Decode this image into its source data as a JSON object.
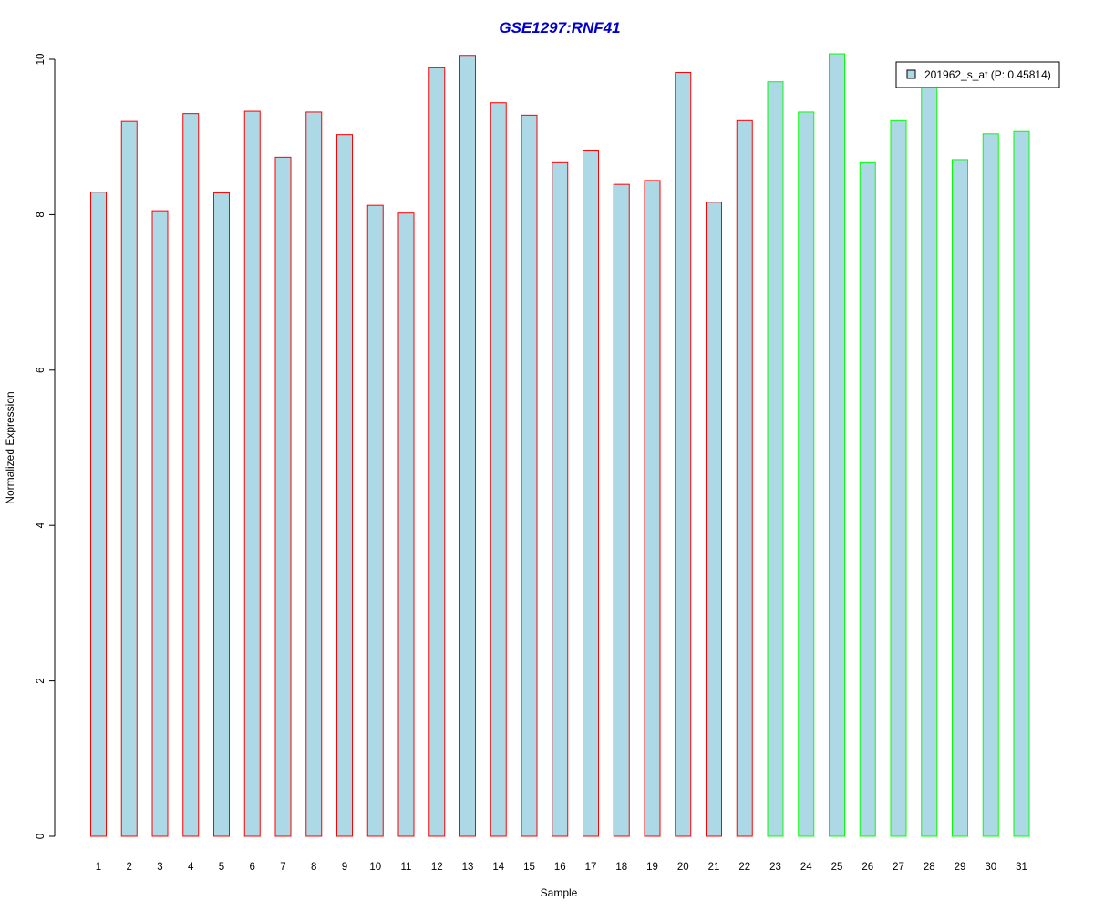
{
  "chart_data": {
    "type": "bar",
    "title": "GSE1297:RNF41",
    "xlabel": "Sample",
    "ylabel": "Normalized Expression",
    "ylim": [
      0,
      10
    ],
    "yticks": [
      0,
      2,
      4,
      6,
      8,
      10
    ],
    "grid": false,
    "categories": [
      "1",
      "2",
      "3",
      "4",
      "5",
      "6",
      "7",
      "8",
      "9",
      "10",
      "11",
      "12",
      "13",
      "14",
      "15",
      "16",
      "17",
      "18",
      "19",
      "20",
      "21",
      "22",
      "23",
      "24",
      "25",
      "26",
      "27",
      "28",
      "29",
      "30",
      "31"
    ],
    "series": [
      {
        "name": "201962_s_at (P: 0.45814)",
        "values": [
          8.29,
          9.2,
          8.05,
          9.3,
          8.28,
          9.33,
          8.74,
          9.32,
          9.03,
          8.12,
          8.02,
          9.89,
          10.05,
          9.44,
          9.28,
          8.67,
          8.82,
          8.39,
          8.44,
          9.83,
          8.16,
          9.21,
          9.71,
          9.32,
          10.07,
          8.67,
          9.21,
          9.66,
          8.71,
          9.04,
          9.07
        ]
      }
    ],
    "group_assignment": [
      "A",
      "A",
      "A",
      "A",
      "A",
      "A",
      "A",
      "A",
      "A",
      "A",
      "A",
      "A",
      "A",
      "A",
      "A",
      "A",
      "A",
      "A",
      "A",
      "A",
      "A",
      "A",
      "B",
      "B",
      "B",
      "B",
      "B",
      "B",
      "B",
      "B",
      "B"
    ],
    "colors": {
      "fill": "#add8e6",
      "group_A_border": "#ff0000",
      "group_B_border": "#00ff00",
      "title": "#0000cc",
      "axis": "#000000"
    },
    "legend": {
      "position": "top-right",
      "label": "201962_s_at (P: 0.45814)"
    }
  }
}
